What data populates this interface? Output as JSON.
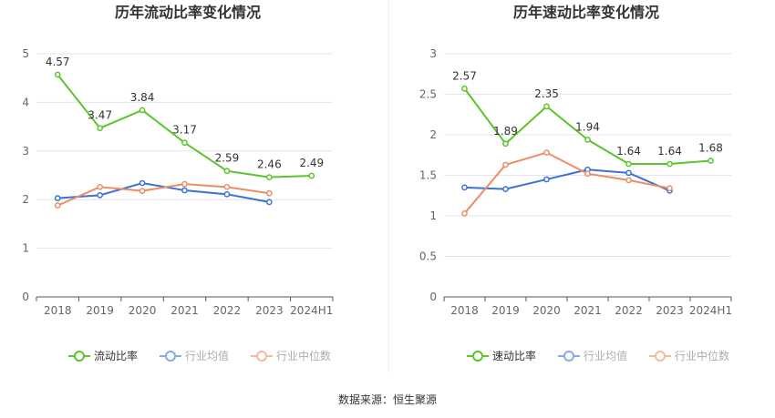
{
  "footer": "数据来源：恒生聚源",
  "colors": {
    "main": "#5cc42d",
    "avg": "#3a72d8",
    "median": "#ef8c64",
    "axis": "#555555",
    "grid": "#e4e4ee",
    "title": "#333333"
  },
  "chart_data": [
    {
      "type": "line",
      "title": "历年流动比率变化情况",
      "categories": [
        "2018",
        "2019",
        "2020",
        "2021",
        "2022",
        "2023",
        "2024H1"
      ],
      "ylim": [
        0,
        5
      ],
      "yticks": [
        "0",
        "1",
        "2",
        "3",
        "4",
        "5"
      ],
      "xlabel": "",
      "ylabel": "",
      "series": [
        {
          "name": "流动比率",
          "key": "main",
          "values": [
            4.57,
            3.47,
            3.84,
            3.17,
            2.59,
            2.46,
            2.49
          ],
          "labels": [
            "4.57",
            "3.47",
            "3.84",
            "3.17",
            "2.59",
            "2.46",
            "2.49"
          ]
        },
        {
          "name": "行业均值",
          "key": "avg",
          "values": [
            2.03,
            2.09,
            2.34,
            2.19,
            2.11,
            1.95,
            null
          ]
        },
        {
          "name": "行业中位数",
          "key": "median",
          "values": [
            1.88,
            2.26,
            2.18,
            2.32,
            2.26,
            2.13,
            null
          ]
        }
      ]
    },
    {
      "type": "line",
      "title": "历年速动比率变化情况",
      "categories": [
        "2018",
        "2019",
        "2020",
        "2021",
        "2022",
        "2023",
        "2024H1"
      ],
      "ylim": [
        0,
        3
      ],
      "yticks": [
        "0",
        "0.5",
        "1",
        "1.5",
        "2",
        "2.5",
        "3"
      ],
      "xlabel": "",
      "ylabel": "",
      "series": [
        {
          "name": "速动比率",
          "key": "main",
          "values": [
            2.57,
            1.89,
            2.35,
            1.94,
            1.64,
            1.64,
            1.68
          ],
          "labels": [
            "2.57",
            "1.89",
            "2.35",
            "1.94",
            "1.64",
            "1.64",
            "1.68"
          ]
        },
        {
          "name": "行业均值",
          "key": "avg",
          "values": [
            1.35,
            1.33,
            1.45,
            1.57,
            1.53,
            1.31,
            null
          ]
        },
        {
          "name": "行业中位数",
          "key": "median",
          "values": [
            1.03,
            1.63,
            1.78,
            1.52,
            1.44,
            1.34,
            null
          ]
        }
      ]
    }
  ]
}
